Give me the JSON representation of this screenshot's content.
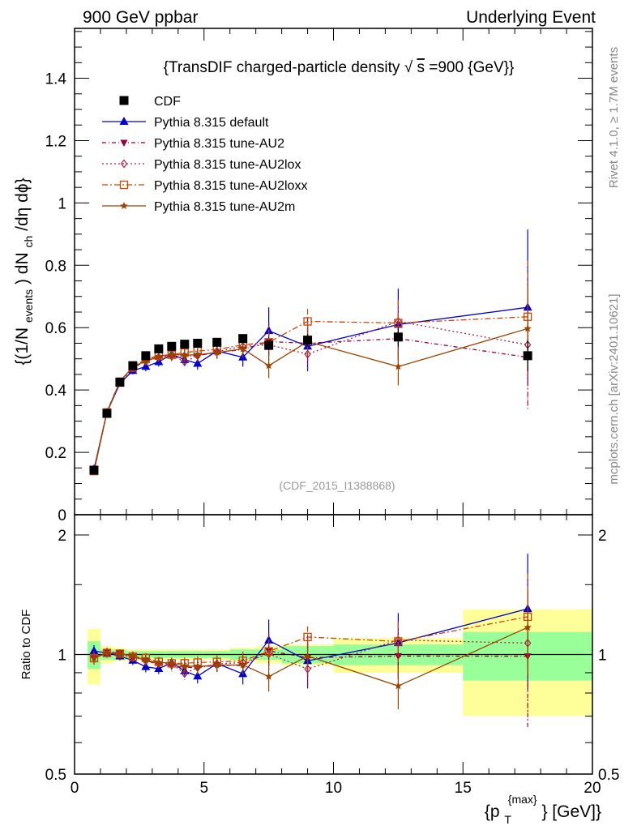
{
  "header": {
    "left": "900 GeV ppbar",
    "right": "Underlying Event"
  },
  "side_labels": {
    "rivet": "Rivet 4.1.0, ≥ 1.7M events",
    "mcplots": "mcplots.cern.ch [arXiv:2401.10621]"
  },
  "watermark": "(CDF_2015_I1388868)",
  "colors": {
    "data": "#000000",
    "default": "#0000cc",
    "au2": "#990033",
    "au2lox": "#aa2244",
    "au2loxx": "#cc4400",
    "au2m": "#994400",
    "band_inner": "#99ff99",
    "band_outer": "#ffff99"
  },
  "chart_data": {
    "type": "scatter",
    "title": "{TransDIF charged-particle density√s=900 {GeV}}",
    "title_parts": {
      "main": "{TransDIF charged-particle density",
      "sqrt": "√",
      "s_var": "s",
      "energy": "=900 {GeV}}"
    },
    "ylabel_main": {
      "p1": "{(1/N",
      "p1_sub": "events",
      "p2": ") dN",
      "p2_sub": "ch",
      "p3": "/dη dϕ}"
    },
    "ylabel_ratio": "Ratio to CDF",
    "xlabel": {
      "main": "{p",
      "sub": "T",
      "sup": "{max}",
      "rest": "} [GeV]}"
    },
    "xlim": [
      0,
      20
    ],
    "ylim": [
      0,
      1.56
    ],
    "ratio_ylim": [
      0.5,
      2.25
    ],
    "x_ticks": [
      "0",
      "5",
      "10",
      "15",
      "20"
    ],
    "y_ticks": [
      "0",
      "0.2",
      "0.4",
      "0.6",
      "0.8",
      "1",
      "1.2",
      "1.4"
    ],
    "ratio_ticks": [
      "0.5",
      "1",
      "2"
    ],
    "x": [
      0.75,
      1.25,
      1.75,
      2.25,
      2.75,
      3.25,
      3.75,
      4.25,
      4.75,
      5.5,
      6.5,
      7.5,
      9.0,
      12.5,
      17.5
    ],
    "bin_edges": [
      0.5,
      1.0,
      1.5,
      2.0,
      2.5,
      3.0,
      3.5,
      4.0,
      4.5,
      5.0,
      6.0,
      7.0,
      8.0,
      10.0,
      15.0,
      20.0
    ],
    "band_inner": [
      0.08,
      0.03,
      0.03,
      0.02,
      0.02,
      0.02,
      0.02,
      0.02,
      0.02,
      0.02,
      0.03,
      0.03,
      0.05,
      0.06,
      0.14
    ],
    "band_outer": [
      0.16,
      0.05,
      0.04,
      0.03,
      0.03,
      0.03,
      0.03,
      0.03,
      0.03,
      0.03,
      0.04,
      0.05,
      0.06,
      0.1,
      0.3
    ],
    "series": [
      {
        "key": "data",
        "name": "CDF",
        "style": "data",
        "marker": "square",
        "values": [
          0.143,
          0.325,
          0.425,
          0.478,
          0.51,
          0.532,
          0.54,
          0.547,
          0.55,
          0.553,
          0.565,
          0.543,
          0.56,
          0.57,
          0.51
        ],
        "errors": [
          0.005,
          0.005,
          0.006,
          0.007,
          0.007,
          0.008,
          0.008,
          0.008,
          0.008,
          0.008,
          0.01,
          0.015,
          0.02,
          0.03,
          0.05
        ]
      },
      {
        "key": "default",
        "name": "Pythia 8.315 default",
        "style": "solid",
        "marker": "triangle-up",
        "values": [
          0.146,
          0.328,
          0.421,
          0.462,
          0.475,
          0.49,
          0.515,
          0.497,
          0.485,
          0.525,
          0.505,
          0.59,
          0.54,
          0.61,
          0.665
        ],
        "errors": [
          0.005,
          0.008,
          0.01,
          0.012,
          0.015,
          0.015,
          0.015,
          0.018,
          0.02,
          0.02,
          0.03,
          0.075,
          0.08,
          0.115,
          0.25
        ]
      },
      {
        "key": "au2",
        "name": "Pythia 8.315 tune-AU2",
        "style": "dash1",
        "marker": "triangle-down",
        "values": [
          0.14,
          0.33,
          0.428,
          0.472,
          0.493,
          0.502,
          0.505,
          0.508,
          0.51,
          0.52,
          0.53,
          0.555,
          0.55,
          0.565,
          0.505
        ],
        "errors": [
          0.005,
          0.008,
          0.01,
          0.012,
          0.015,
          0.015,
          0.015,
          0.018,
          0.02,
          0.02,
          0.03,
          0.06,
          0.08,
          0.08,
          0.17
        ]
      },
      {
        "key": "au2lox",
        "name": "Pythia 8.315 tune-AU2lox",
        "style": "dash2",
        "marker": "diamond",
        "values": [
          0.141,
          0.327,
          0.425,
          0.47,
          0.493,
          0.505,
          0.512,
          0.49,
          0.51,
          0.523,
          0.54,
          0.545,
          0.515,
          0.62,
          0.545
        ],
        "errors": [
          0.005,
          0.008,
          0.01,
          0.012,
          0.015,
          0.015,
          0.015,
          0.018,
          0.02,
          0.02,
          0.03,
          0.06,
          0.05,
          0.07,
          0.2
        ]
      },
      {
        "key": "au2loxx",
        "name": "Pythia 8.315 tune-AU2loxx",
        "style": "dash3",
        "marker": "square-open",
        "values": [
          0.14,
          0.328,
          0.427,
          0.472,
          0.5,
          0.51,
          0.513,
          0.52,
          0.525,
          0.53,
          0.545,
          0.553,
          0.62,
          0.615,
          0.635
        ],
        "errors": [
          0.005,
          0.008,
          0.01,
          0.012,
          0.015,
          0.015,
          0.015,
          0.018,
          0.02,
          0.02,
          0.03,
          0.04,
          0.04,
          0.07,
          0.18
        ]
      },
      {
        "key": "au2m",
        "name": "Pythia 8.315 tune-AU2m",
        "style": "solid",
        "marker": "star",
        "values": [
          0.14,
          0.328,
          0.427,
          0.475,
          0.493,
          0.508,
          0.514,
          0.512,
          0.513,
          0.52,
          0.532,
          0.478,
          0.555,
          0.475,
          0.597
        ],
        "errors": [
          0.005,
          0.008,
          0.01,
          0.012,
          0.015,
          0.015,
          0.015,
          0.018,
          0.02,
          0.02,
          0.03,
          0.04,
          0.05,
          0.06,
          0.14
        ]
      }
    ]
  }
}
